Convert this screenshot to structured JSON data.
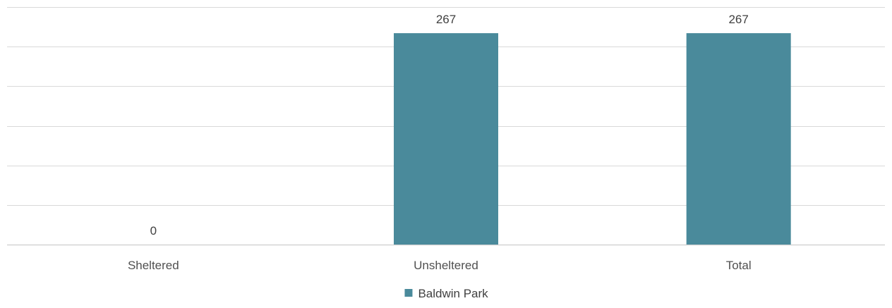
{
  "chart_data": {
    "type": "bar",
    "categories": [
      "Sheltered",
      "Unsheltered",
      "Total"
    ],
    "series": [
      {
        "name": "Baldwin Park",
        "values": [
          0,
          267,
          267
        ],
        "color": "#4a8a9b"
      }
    ],
    "data_labels": [
      "0",
      "267",
      "267"
    ],
    "ylim": [
      0,
      300
    ],
    "y_gridline_step": 50,
    "grid": true,
    "legend_position": "bottom",
    "title": "",
    "xlabel": "",
    "ylabel": ""
  }
}
